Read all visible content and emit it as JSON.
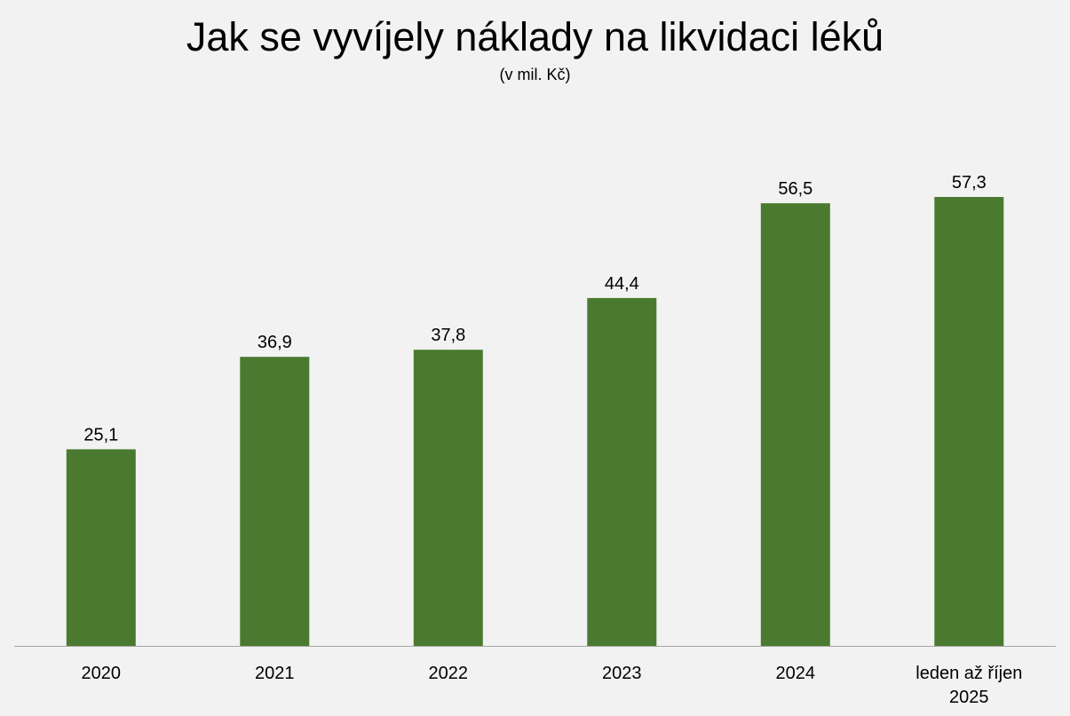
{
  "chart_data": {
    "type": "bar",
    "title": "Jak se vyvíjely náklady na likvidaci léků",
    "subtitle": "(v mil. Kč)",
    "categories": [
      "2020",
      "2021",
      "2022",
      "2023",
      "2024",
      "leden až říjen\n2025"
    ],
    "values": [
      25.1,
      36.9,
      37.8,
      44.4,
      56.5,
      57.3
    ],
    "data_labels": [
      "25,1",
      "36,9",
      "37,8",
      "44,4",
      "56,5",
      "57,3"
    ],
    "xlabel": "",
    "ylabel": "",
    "ylim": [
      0,
      63
    ],
    "grid": false,
    "legend": "none",
    "colors": {
      "bar": "#4a7a2f",
      "axis": "#a6a6a6",
      "background": "#f2f2f2"
    }
  }
}
